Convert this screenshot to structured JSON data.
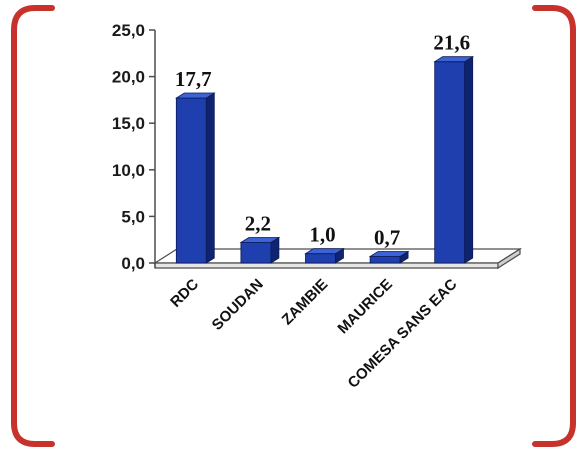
{
  "chart_data": {
    "type": "bar",
    "categories": [
      "RDC",
      "SOUDAN",
      "ZAMBIE",
      "MAURICE",
      "COMESA SANS EAC"
    ],
    "values": [
      17.7,
      2.2,
      1.0,
      0.7,
      21.6
    ],
    "value_labels": [
      "17,7",
      "2,2",
      "1,0",
      "0,7",
      "21,6"
    ],
    "ylim": [
      0,
      25
    ],
    "y_ticks": [
      "0,0",
      "5,0",
      "10,0",
      "15,0",
      "20,0",
      "25,0"
    ],
    "grid": false,
    "legend": "none",
    "style": "3d-column"
  },
  "colors": {
    "bar_front": "#1f3fae",
    "bar_side": "#0f2470",
    "bar_top": "#3c63d6",
    "frame": "#c8322d",
    "floor": "#ffffff",
    "axis": "#4d4d4d"
  }
}
